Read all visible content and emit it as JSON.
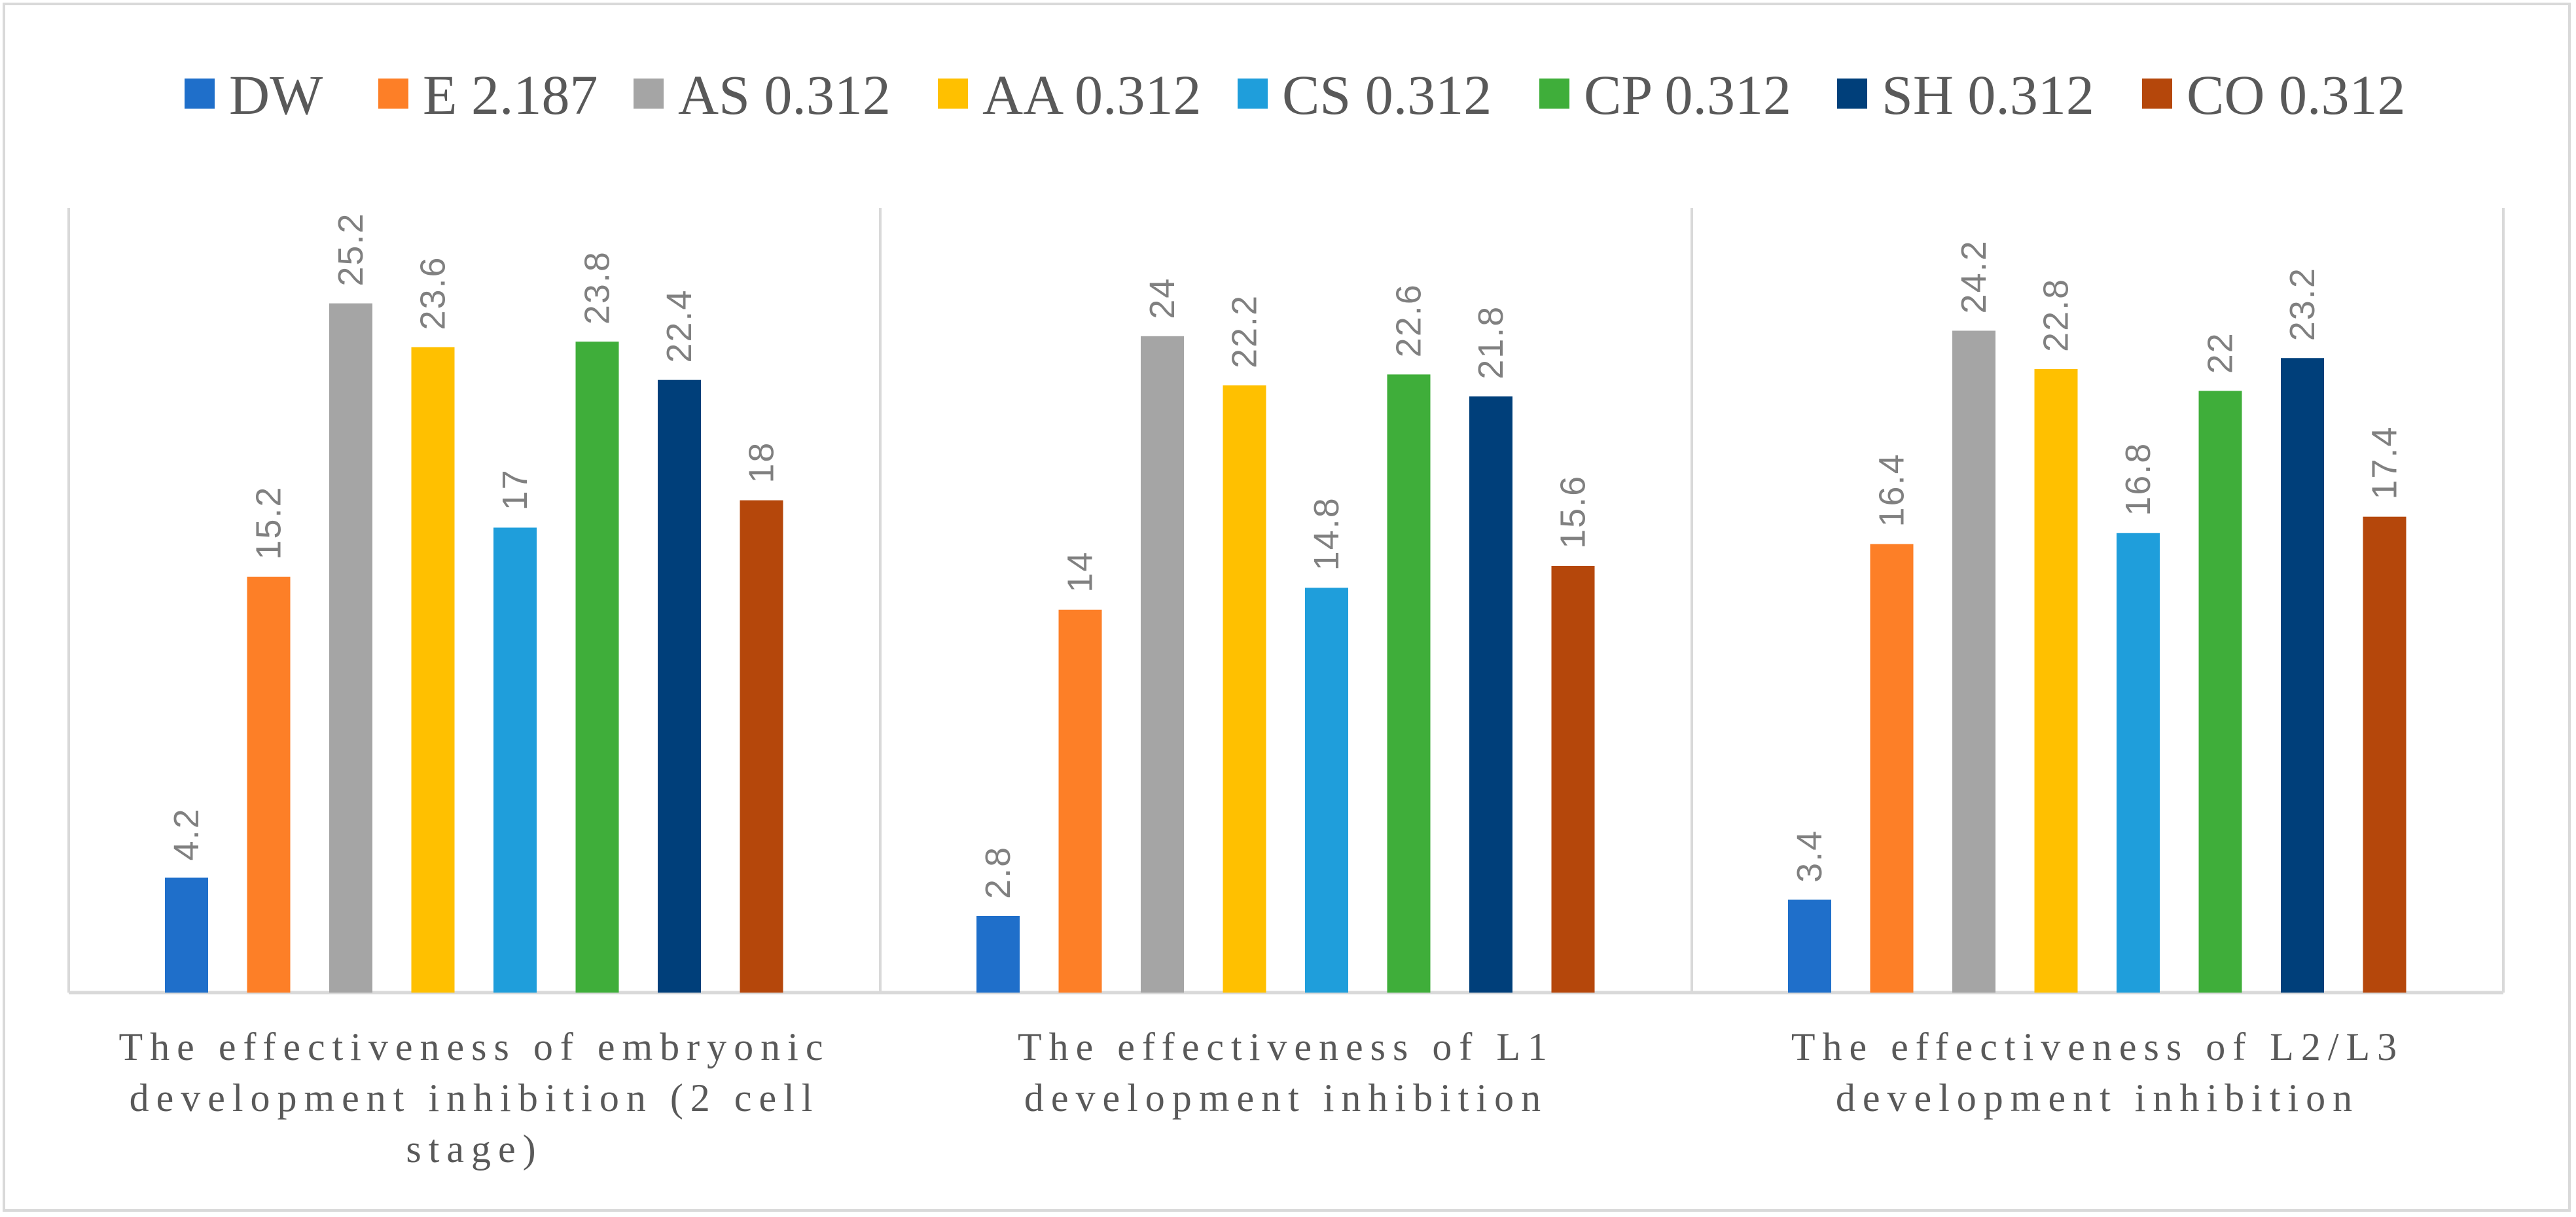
{
  "chart_data": {
    "type": "bar",
    "title": "",
    "xlabel": "",
    "ylabel": "",
    "ylim": [
      0,
      30
    ],
    "grid": false,
    "legend_position": "top",
    "categories": [
      [
        "The effectiveness of embryonic",
        "development inhibition (2 cell",
        "stage)"
      ],
      [
        "The effectiveness of L1",
        "development inhibition"
      ],
      [
        "The effectiveness of L2/L3",
        "development inhibition"
      ]
    ],
    "series": [
      {
        "name": "DW",
        "color": "#1f6fca",
        "values": [
          4.2,
          2.8,
          3.4
        ],
        "labels": [
          "4.2",
          "2.8",
          "3.4"
        ]
      },
      {
        "name": "E 2.187",
        "color": "#fd7f27",
        "values": [
          15.2,
          14,
          16.4
        ],
        "labels": [
          "15.2",
          "14",
          "16.4"
        ]
      },
      {
        "name": "AS 0.312",
        "color": "#a5a5a5",
        "values": [
          25.2,
          24,
          24.2
        ],
        "labels": [
          "25.2",
          "24",
          "24.2"
        ]
      },
      {
        "name": "AA 0.312",
        "color": "#ffc000",
        "values": [
          23.6,
          22.2,
          22.8
        ],
        "labels": [
          "23.6",
          "22.2",
          "22.8"
        ]
      },
      {
        "name": "CS 0.312",
        "color": "#1f9edb",
        "values": [
          17,
          14.8,
          16.8
        ],
        "labels": [
          "17",
          "14.8",
          "16.8"
        ]
      },
      {
        "name": "CP 0.312",
        "color": "#3fae3a",
        "values": [
          23.8,
          22.6,
          22
        ],
        "labels": [
          "23.8",
          "22.6",
          "22"
        ]
      },
      {
        "name": "SH 0.312",
        "color": "#003f7a",
        "values": [
          22.4,
          21.8,
          23.2
        ],
        "labels": [
          "22.4",
          "21.8",
          "23.2"
        ]
      },
      {
        "name": "CO 0.312",
        "color": "#b5470b",
        "values": [
          18,
          15.6,
          17.4
        ],
        "labels": [
          "18",
          "15.6",
          "17.4"
        ]
      }
    ]
  }
}
